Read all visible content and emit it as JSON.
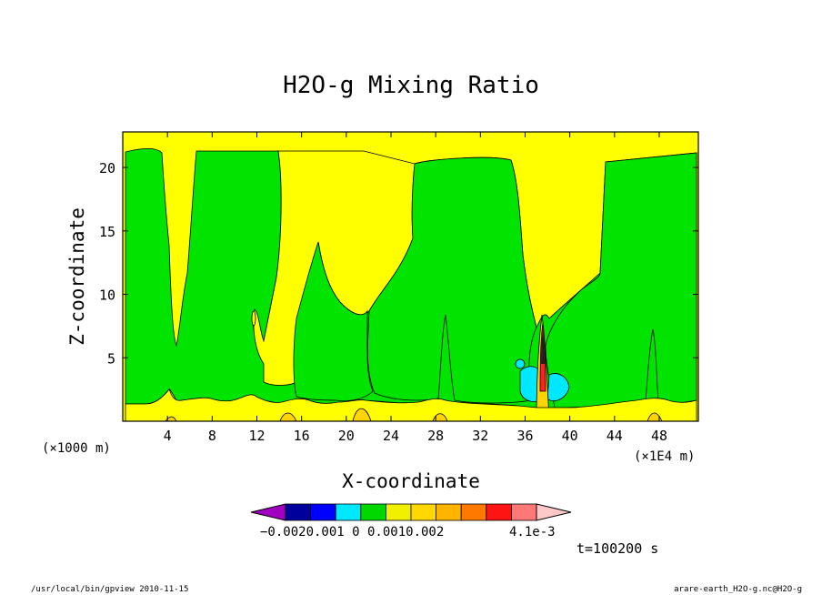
{
  "chart_data": {
    "type": "heatmap",
    "title": "H2O-g Mixing Ratio",
    "xlabel": "X-coordinate",
    "ylabel": "Z-coordinate",
    "x_scale_left": "(×1000 m)",
    "x_scale_right": "(×1E4 m)",
    "xlim": [
      0,
      51.5
    ],
    "ylim": [
      0,
      22.8
    ],
    "x_ticks": [
      4,
      8,
      12,
      16,
      20,
      24,
      28,
      32,
      36,
      40,
      44,
      48
    ],
    "y_ticks": [
      5,
      10,
      15,
      20
    ],
    "colorbar": {
      "levels": [
        "-0.002",
        "-0.001",
        "0",
        "0.001",
        "0.002",
        "4.1e-3"
      ],
      "label_text": "−0.0020.001  0   0.0010.002",
      "max_label": "4.1e-3",
      "colors": [
        "#a000c0",
        "#00009c",
        "#0000ff",
        "#00e8ff",
        "#00d800",
        "#f0f000",
        "#ffd800",
        "#ffb400",
        "#ff7800",
        "#ff1414",
        "#ff7878",
        "#ffc8c8"
      ]
    },
    "fill_colors": {
      "background": "#ffff00",
      "green": "#00e400",
      "cyan": "#00e8ff",
      "orange": "#ffd400",
      "red": "#ff2020"
    },
    "time_label": "t=100200 s"
  },
  "footer": {
    "left": "/usr/local/bin/gpview  2010-11-15",
    "right": "arare-earth_H2O-g.nc@H2O-g"
  }
}
